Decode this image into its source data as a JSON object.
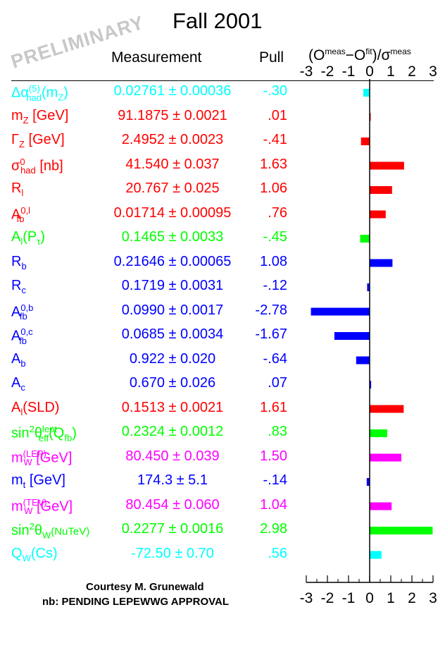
{
  "header": {
    "title": "Fall 2001",
    "watermark": "PRELIMINARY",
    "col_measurement": "Measurement",
    "col_pull": "Pull",
    "axis_label_prefix": "(O",
    "axis_label_meas": "meas",
    "axis_label_mid": "−O",
    "axis_label_fit": "fit",
    "axis_label_slash": ")/σ",
    "axis_label_meas2": "meas"
  },
  "footer": {
    "credit": "Courtesy M. Grunewald",
    "note": "nb: PENDING LEPEWWG APPROVAL"
  },
  "chart_data": {
    "type": "bar",
    "orientation": "horizontal",
    "xlim": [
      -3,
      3
    ],
    "x_ticks": [
      "-3",
      "-2",
      "-1",
      "0",
      "1",
      "2",
      "3"
    ],
    "grid": false,
    "rows": [
      {
        "name_main": "Δα",
        "name_sub": "had",
        "name_sup": "(5)",
        "name_tail": "(m",
        "name_tail_sub": "Z",
        "name_end": ")",
        "measurement": "0.02761 ± 0.00036",
        "pull_label": "-.30",
        "pull": -0.3,
        "color": "#00ffff"
      },
      {
        "name_main": "m",
        "name_sub": "Z",
        "name_sup": "",
        "name_tail": " [GeV]",
        "name_tail_sub": "",
        "name_end": "",
        "measurement": "91.1875 ± 0.0021",
        "pull_label": ".01",
        "pull": 0.01,
        "color": "#ff0000"
      },
      {
        "name_main": "Γ",
        "name_sub": "Z",
        "name_sup": "",
        "name_tail": " [GeV]",
        "name_tail_sub": "",
        "name_end": "",
        "measurement": "2.4952 ± 0.0023",
        "pull_label": "-.41",
        "pull": -0.41,
        "color": "#ff0000"
      },
      {
        "name_main": "σ",
        "name_sub": "had",
        "name_sup": "0",
        "name_tail": " [nb]",
        "name_tail_sub": "",
        "name_end": "",
        "measurement": "41.540 ± 0.037",
        "pull_label": "1.63",
        "pull": 1.63,
        "color": "#ff0000"
      },
      {
        "name_main": "R",
        "name_sub": "l",
        "name_sup": "",
        "name_tail": "",
        "name_tail_sub": "",
        "name_end": "",
        "measurement": "20.767 ± 0.025",
        "pull_label": "1.06",
        "pull": 1.06,
        "color": "#ff0000"
      },
      {
        "name_main": "A",
        "name_sub": "fb",
        "name_sup": "0,l",
        "name_tail": "",
        "name_tail_sub": "",
        "name_end": "",
        "measurement": "0.01714 ± 0.00095",
        "pull_label": ".76",
        "pull": 0.76,
        "color": "#ff0000"
      },
      {
        "name_main": "A",
        "name_sub": "l",
        "name_sup": "",
        "name_tail": "(P",
        "name_tail_sub": "τ",
        "name_end": ")",
        "measurement": "0.1465 ± 0.0033",
        "pull_label": "-.45",
        "pull": -0.45,
        "color": "#00ff00"
      },
      {
        "name_main": "R",
        "name_sub": "b",
        "name_sup": "",
        "name_tail": "",
        "name_tail_sub": "",
        "name_end": "",
        "measurement": "0.21646 ± 0.00065",
        "pull_label": "1.08",
        "pull": 1.08,
        "color": "#0000ff"
      },
      {
        "name_main": "R",
        "name_sub": "c",
        "name_sup": "",
        "name_tail": "",
        "name_tail_sub": "",
        "name_end": "",
        "measurement": "0.1719 ± 0.0031",
        "pull_label": "-.12",
        "pull": -0.12,
        "color": "#0000ff"
      },
      {
        "name_main": "A",
        "name_sub": "fb",
        "name_sup": "0,b",
        "name_tail": "",
        "name_tail_sub": "",
        "name_end": "",
        "measurement": "0.0990 ± 0.0017",
        "pull_label": "-2.78",
        "pull": -2.78,
        "color": "#0000ff"
      },
      {
        "name_main": "A",
        "name_sub": "fb",
        "name_sup": "0,c",
        "name_tail": "",
        "name_tail_sub": "",
        "name_end": "",
        "measurement": "0.0685 ± 0.0034",
        "pull_label": "-1.67",
        "pull": -1.67,
        "color": "#0000ff"
      },
      {
        "name_main": "A",
        "name_sub": "b",
        "name_sup": "",
        "name_tail": "",
        "name_tail_sub": "",
        "name_end": "",
        "measurement": "0.922 ± 0.020",
        "pull_label": "-.64",
        "pull": -0.64,
        "color": "#0000ff"
      },
      {
        "name_main": "A",
        "name_sub": "c",
        "name_sup": "",
        "name_tail": "",
        "name_tail_sub": "",
        "name_end": "",
        "measurement": "0.670 ± 0.026",
        "pull_label": ".07",
        "pull": 0.07,
        "color": "#0000ff"
      },
      {
        "name_main": "A",
        "name_sub": "l",
        "name_sup": "",
        "name_tail": "(SLD)",
        "name_tail_sub": "",
        "name_end": "",
        "measurement": "0.1513 ± 0.0021",
        "pull_label": "1.61",
        "pull": 1.61,
        "color": "#ff0000"
      },
      {
        "name_main": "sin",
        "name_sub": "",
        "name_sup": "2",
        "name_tail": "θ",
        "name_tail_sub": "eff",
        "name_tail_sup": "lept",
        "name_end": "(Q",
        "name_end_sub": "fb",
        "name_end2": ")",
        "measurement": "0.2324 ± 0.0012",
        "pull_label": ".83",
        "pull": 0.83,
        "color": "#00ff00"
      },
      {
        "name_main": "m",
        "name_sub": "W",
        "name_sup": "(LEP)",
        "name_tail": " [GeV]",
        "name_tail_sub": "",
        "name_end": "",
        "measurement": "80.450 ± 0.039",
        "pull_label": "1.50",
        "pull": 1.5,
        "color": "#ff00ff"
      },
      {
        "name_main": "m",
        "name_sub": "t",
        "name_sup": "",
        "name_tail": " [GeV]",
        "name_tail_sub": "",
        "name_end": "",
        "measurement": "174.3 ± 5.1",
        "pull_label": "-.14",
        "pull": -0.14,
        "color": "#0000ff"
      },
      {
        "name_main": "m",
        "name_sub": "W",
        "name_sup": "(TEV)",
        "name_tail": " [GeV]",
        "name_tail_sub": "",
        "name_end": "",
        "measurement": "80.454 ± 0.060",
        "pull_label": "1.04",
        "pull": 1.04,
        "color": "#ff00ff"
      },
      {
        "name_main": "sin",
        "name_sub": "",
        "name_sup": "2",
        "name_tail": "θ",
        "name_tail_sub": "W",
        "name_end": "(NuTeV)",
        "name_end_small": true,
        "measurement": "0.2277 ± 0.0016",
        "pull_label": "2.98",
        "pull": 2.98,
        "color": "#00ff00"
      },
      {
        "name_main": "Q",
        "name_sub": "W",
        "name_sup": "",
        "name_tail": "(Cs)",
        "name_tail_sub": "",
        "name_end": "",
        "measurement": "-72.50 ± 0.70",
        "pull_label": ".56",
        "pull": 0.56,
        "color": "#00ffff"
      }
    ]
  }
}
